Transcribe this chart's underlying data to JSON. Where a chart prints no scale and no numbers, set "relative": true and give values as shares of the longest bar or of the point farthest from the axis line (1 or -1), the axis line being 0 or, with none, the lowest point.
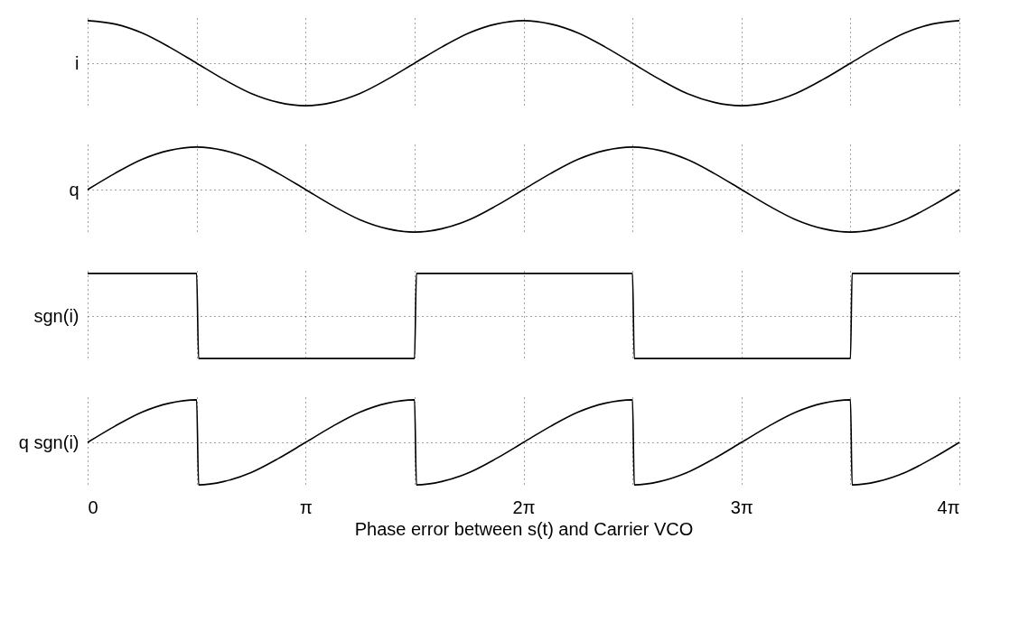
{
  "chart_data": [
    {
      "type": "line",
      "relative": true,
      "ylabel": "i",
      "xlim": [
        0,
        12.566
      ],
      "xticks": [
        {
          "value": 0,
          "label": null
        },
        {
          "value": 1.571,
          "label": null
        },
        {
          "value": 3.142,
          "label": null
        },
        {
          "value": 4.712,
          "label": null
        },
        {
          "value": 6.283,
          "label": null
        },
        {
          "value": 7.854,
          "label": null
        },
        {
          "value": 9.425,
          "label": null
        },
        {
          "value": 10.996,
          "label": null
        },
        {
          "value": 12.566,
          "label": null
        }
      ],
      "tick_labels": false,
      "grid": true,
      "marker": "none",
      "line_style": "solid",
      "series": [
        {
          "color": "#000000",
          "x": [
            0,
            0.393,
            0.785,
            1.178,
            1.571,
            1.963,
            2.356,
            2.749,
            3.142,
            3.534,
            3.927,
            4.32,
            4.712,
            5.105,
            5.498,
            5.89,
            6.283,
            6.676,
            7.069,
            7.461,
            7.854,
            8.247,
            8.639,
            9.032,
            9.425,
            9.817,
            10.21,
            10.603,
            10.996,
            11.388,
            11.781,
            12.174,
            12.566
          ],
          "values": [
            1,
            0.92,
            0.71,
            0.38,
            0,
            -0.38,
            -0.71,
            -0.92,
            -1,
            -0.92,
            -0.71,
            -0.38,
            0,
            0.38,
            0.71,
            0.92,
            1,
            0.92,
            0.71,
            0.38,
            0,
            -0.38,
            -0.71,
            -0.92,
            -1,
            -0.92,
            -0.71,
            -0.38,
            0,
            0.38,
            0.71,
            0.92,
            1
          ]
        }
      ]
    },
    {
      "type": "line",
      "relative": true,
      "ylabel": "q",
      "xlim": [
        0,
        12.566
      ],
      "xticks": [
        {
          "value": 0,
          "label": null
        },
        {
          "value": 1.571,
          "label": null
        },
        {
          "value": 3.142,
          "label": null
        },
        {
          "value": 4.712,
          "label": null
        },
        {
          "value": 6.283,
          "label": null
        },
        {
          "value": 7.854,
          "label": null
        },
        {
          "value": 9.425,
          "label": null
        },
        {
          "value": 10.996,
          "label": null
        },
        {
          "value": 12.566,
          "label": null
        }
      ],
      "tick_labels": false,
      "grid": true,
      "marker": "none",
      "line_style": "solid",
      "series": [
        {
          "color": "#000000",
          "x": [
            0,
            0.393,
            0.785,
            1.178,
            1.571,
            1.963,
            2.356,
            2.749,
            3.142,
            3.534,
            3.927,
            4.32,
            4.712,
            5.105,
            5.498,
            5.89,
            6.283,
            6.676,
            7.069,
            7.461,
            7.854,
            8.247,
            8.639,
            9.032,
            9.425,
            9.817,
            10.21,
            10.603,
            10.996,
            11.388,
            11.781,
            12.174,
            12.566
          ],
          "values": [
            0,
            0.38,
            0.71,
            0.92,
            1,
            0.92,
            0.71,
            0.38,
            0,
            -0.38,
            -0.71,
            -0.92,
            -1,
            -0.92,
            -0.71,
            -0.38,
            0,
            0.38,
            0.71,
            0.92,
            1,
            0.92,
            0.71,
            0.38,
            0,
            -0.38,
            -0.71,
            -0.92,
            -1,
            -0.92,
            -0.71,
            -0.38,
            0
          ]
        }
      ]
    },
    {
      "type": "line",
      "relative": true,
      "ylabel": "sgn(i)",
      "xlim": [
        0,
        12.566
      ],
      "xticks": [
        {
          "value": 0,
          "label": null
        },
        {
          "value": 1.571,
          "label": null
        },
        {
          "value": 3.142,
          "label": null
        },
        {
          "value": 4.712,
          "label": null
        },
        {
          "value": 6.283,
          "label": null
        },
        {
          "value": 7.854,
          "label": null
        },
        {
          "value": 9.425,
          "label": null
        },
        {
          "value": 10.996,
          "label": null
        },
        {
          "value": 12.566,
          "label": null
        }
      ],
      "tick_labels": false,
      "grid": true,
      "marker": "none",
      "line_style": "solid",
      "series": [
        {
          "color": "#000000",
          "x": [
            0,
            1.571,
            1.6,
            4.712,
            4.74,
            7.854,
            7.88,
            10.996,
            11.02,
            12.566
          ],
          "values": [
            1,
            1,
            -1,
            -1,
            1,
            1,
            -1,
            -1,
            1,
            1
          ]
        }
      ]
    },
    {
      "type": "line",
      "relative": true,
      "ylabel": "q sgn(i)",
      "xlabel": "Phase error between s(t) and Carrier VCO",
      "xlim": [
        0,
        12.566
      ],
      "xticks": [
        0,
        {
          "value": 1.571,
          "label": null
        },
        {
          "value": 3.142,
          "label": "π"
        },
        {
          "value": 4.712,
          "label": null
        },
        {
          "value": 6.283,
          "label": "2π"
        },
        {
          "value": 7.854,
          "label": null
        },
        {
          "value": 9.425,
          "label": "3π"
        },
        {
          "value": 10.996,
          "label": null
        },
        {
          "value": 12.566,
          "label": "4π"
        }
      ],
      "tick_labels": "x",
      "grid": true,
      "marker": "none",
      "line_style": "solid",
      "series": [
        {
          "color": "#000000",
          "x": [
            0,
            0.393,
            0.785,
            1.178,
            1.571,
            1.6,
            1.963,
            2.356,
            2.749,
            3.142,
            3.534,
            3.927,
            4.32,
            4.712,
            4.74,
            5.105,
            5.498,
            5.89,
            6.283,
            6.676,
            7.069,
            7.461,
            7.854,
            7.88,
            8.247,
            8.639,
            9.032,
            9.425,
            9.817,
            10.21,
            10.603,
            10.996,
            11.02,
            11.388,
            11.781,
            12.174,
            12.566
          ],
          "values": [
            0,
            0.38,
            0.71,
            0.92,
            1,
            -1,
            -0.92,
            -0.71,
            -0.38,
            0,
            0.38,
            0.71,
            0.92,
            1,
            -1,
            -0.92,
            -0.71,
            -0.38,
            0,
            0.38,
            0.71,
            0.92,
            1,
            -1,
            -0.92,
            -0.71,
            -0.38,
            0,
            0.38,
            0.71,
            0.92,
            1,
            -1,
            -0.92,
            -0.71,
            -0.38,
            0
          ]
        }
      ]
    }
  ]
}
